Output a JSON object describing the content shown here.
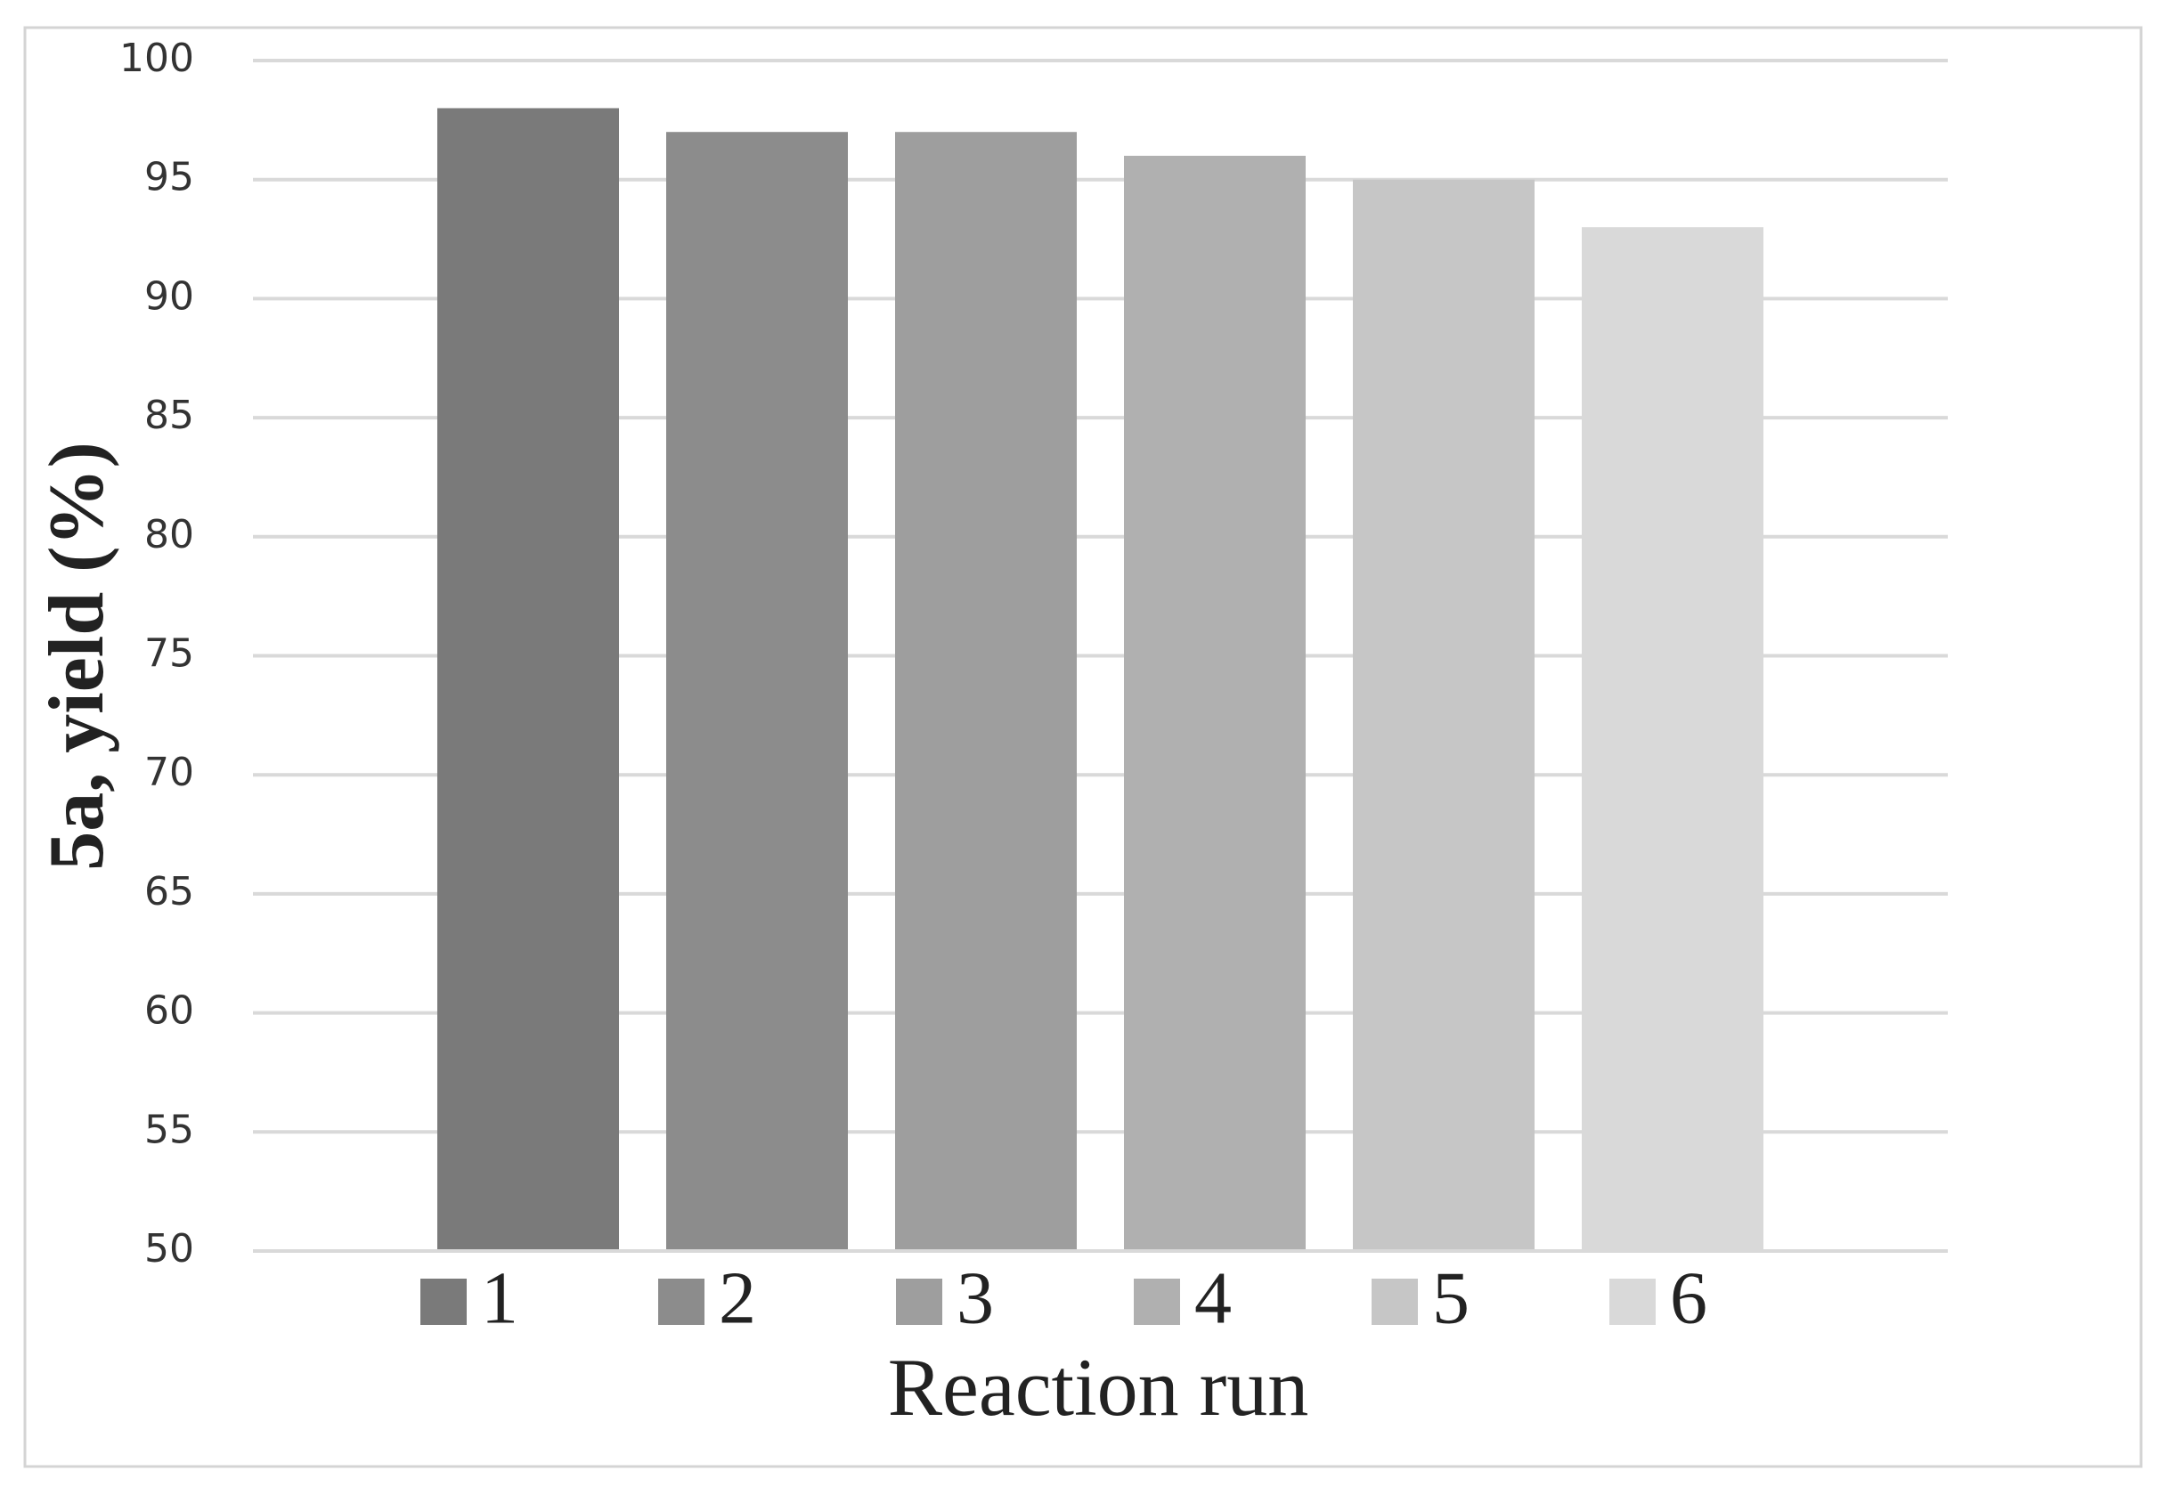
{
  "chart_data": {
    "type": "bar",
    "y_label": "5a, yield (%)",
    "x_label": "Reaction run",
    "categories": [
      null
    ],
    "series": [
      {
        "name": "1",
        "color": "#7a7a7a",
        "values": [
          98
        ]
      },
      {
        "name": "2",
        "color": "#8c8c8c",
        "values": [
          97
        ]
      },
      {
        "name": "3",
        "color": "#9e9e9e",
        "values": [
          97
        ]
      },
      {
        "name": "4",
        "color": "#b0b0b0",
        "values": [
          96
        ]
      },
      {
        "name": "5",
        "color": "#c6c6c6",
        "values": [
          95
        ]
      },
      {
        "name": "6",
        "color": "#d9d9d9",
        "values": [
          93
        ]
      }
    ],
    "ylim": [
      50,
      100
    ],
    "yticks": [
      50,
      55,
      60,
      65,
      70,
      75,
      80,
      85,
      90,
      95,
      100
    ],
    "grid": true,
    "legend": "bottom"
  }
}
